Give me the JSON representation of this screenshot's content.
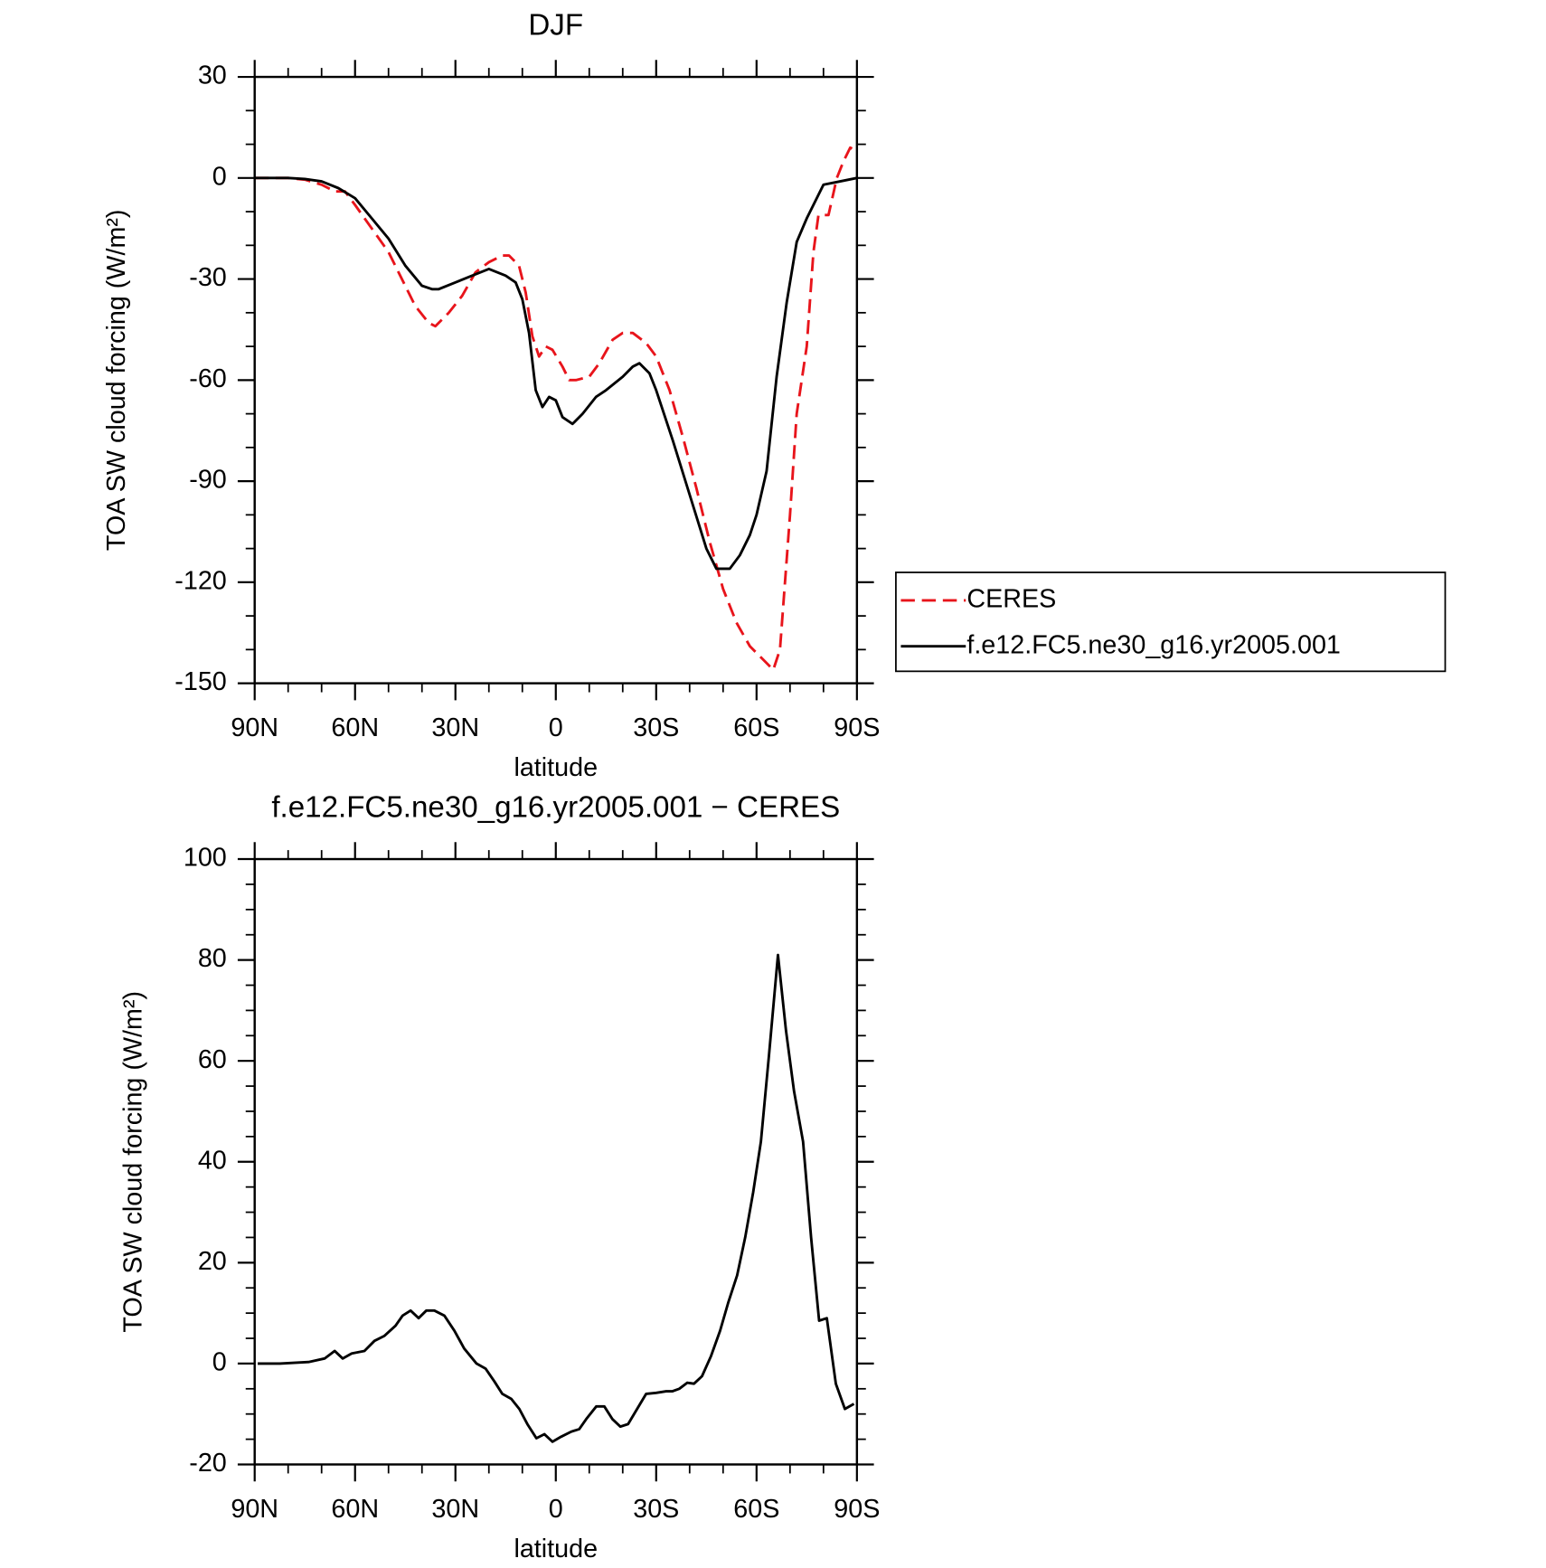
{
  "chart_data": [
    {
      "type": "line",
      "title": "DJF",
      "xlabel": "latitude",
      "ylabel": "TOA SW cloud forcing (W/m²)",
      "xlim": [
        90,
        -90
      ],
      "xticks": [
        {
          "value": 90,
          "label": "90N"
        },
        {
          "value": 60,
          "label": "60N"
        },
        {
          "value": 30,
          "label": "30N"
        },
        0,
        {
          "value": -30,
          "label": "30S"
        },
        {
          "value": -60,
          "label": "60S"
        },
        {
          "value": -90,
          "label": "90S"
        }
      ],
      "xminorticks": [
        80,
        70,
        50,
        40,
        20,
        10,
        -10,
        -20,
        -40,
        -50,
        -70,
        -80
      ],
      "ylim": [
        -150,
        30
      ],
      "yticks": [
        -150,
        -120,
        -90,
        -60,
        -30,
        0,
        30
      ],
      "yminorticks": [
        -140,
        -130,
        -110,
        -100,
        -80,
        -70,
        -50,
        -40,
        -20,
        -10,
        10,
        20
      ],
      "legend": "right",
      "series": [
        {
          "name": "CERES",
          "color": "#e8141b",
          "line_style": "dashed",
          "x": [
            90,
            80,
            75,
            70,
            66,
            63,
            60,
            55,
            50,
            45,
            42,
            38,
            36,
            32,
            28,
            24,
            20,
            16,
            14,
            11,
            9,
            7,
            5,
            3,
            1,
            -2,
            -4,
            -6,
            -10,
            -13,
            -17,
            -20,
            -23,
            -27,
            -30,
            -34,
            -38,
            -42,
            -46,
            -50,
            -54,
            -58,
            -62,
            -65,
            -67,
            -70,
            -72,
            -75,
            -77,
            -78.5,
            -81.5,
            -84,
            -86,
            -88,
            -90
          ],
          "values": [
            0,
            0,
            -0.5,
            -2,
            -4,
            -4,
            -8,
            -15,
            -22,
            -32,
            -38,
            -43,
            -44,
            -40,
            -35,
            -28,
            -25,
            -23,
            -23,
            -26,
            -34,
            -47,
            -53,
            -50,
            -51,
            -56,
            -60,
            -60,
            -59,
            -55,
            -48,
            -46,
            -46,
            -49,
            -53,
            -63,
            -77,
            -92,
            -108,
            -122,
            -132,
            -139,
            -143,
            -146,
            -140,
            -100,
            -70,
            -50,
            -22,
            -11,
            -11,
            0,
            5,
            9,
            8
          ]
        },
        {
          "name": "f.e12.FC5.ne30_g16.yr2005.001",
          "color": "#000000",
          "line_style": "solid",
          "x": [
            90,
            85,
            80,
            75,
            70,
            65,
            60,
            55,
            50,
            45,
            40,
            37,
            35,
            30,
            25,
            20,
            15,
            12,
            10,
            8,
            6,
            4,
            2,
            0,
            -2,
            -5,
            -8,
            -12,
            -15,
            -20,
            -23,
            -25,
            -28,
            -30,
            -35,
            -40,
            -45,
            -48,
            -52,
            -55,
            -58,
            -60,
            -63,
            -66,
            -69,
            -72,
            -75,
            -77,
            -80,
            -85,
            -90
          ],
          "values": [
            0,
            0,
            0,
            -0.3,
            -1,
            -3,
            -6,
            -12,
            -18,
            -26,
            -32,
            -33,
            -33,
            -31,
            -29,
            -27,
            -29,
            -31,
            -36,
            -46,
            -63,
            -68,
            -65,
            -66,
            -71,
            -73,
            -70,
            -65,
            -63,
            -59,
            -56,
            -55,
            -58,
            -63,
            -78,
            -94,
            -110,
            -116,
            -116,
            -112,
            -106,
            -100,
            -87,
            -59,
            -37,
            -19,
            -12,
            -8,
            -2,
            -1,
            0
          ]
        }
      ]
    },
    {
      "type": "line",
      "title": "f.e12.FC5.ne30_g16.yr2005.001 − CERES",
      "xlabel": "latitude",
      "ylabel": "TOA SW cloud forcing (W/m²)",
      "xlim": [
        90,
        -90
      ],
      "xticks": [
        {
          "value": 90,
          "label": "90N"
        },
        {
          "value": 60,
          "label": "60N"
        },
        {
          "value": 30,
          "label": "30N"
        },
        0,
        {
          "value": -30,
          "label": "30S"
        },
        {
          "value": -60,
          "label": "60S"
        },
        {
          "value": -90,
          "label": "90S"
        }
      ],
      "xminorticks": [
        80,
        70,
        50,
        40,
        20,
        10,
        -10,
        -20,
        -40,
        -50,
        -70,
        -80
      ],
      "ylim": [
        -20,
        100
      ],
      "yticks": [
        -20,
        0,
        20,
        40,
        60,
        80,
        100
      ],
      "yminorticks": [
        -15,
        -10,
        -5,
        5,
        10,
        15,
        25,
        30,
        35,
        45,
        50,
        55,
        65,
        70,
        75,
        85,
        90,
        95
      ],
      "series": [
        {
          "color": "#000000",
          "line_style": "solid",
          "x": [
            89.1,
            82.5,
            73.9,
            69.1,
            66.1,
            63.7,
            61,
            57.2,
            54.2,
            51.2,
            47.9,
            45.8,
            43.4,
            41,
            38.7,
            36.3,
            33.3,
            30.3,
            27.4,
            23.7,
            21,
            18.4,
            16,
            13.3,
            10.9,
            8.5,
            5.8,
            3.4,
            1,
            -1.6,
            -4.6,
            -7,
            -9.1,
            -12.1,
            -14.5,
            -16.9,
            -19.3,
            -21.6,
            -27,
            -30,
            -33,
            -34.8,
            -36.9,
            -39.3,
            -41.3,
            -43.7,
            -46.4,
            -49.1,
            -51.5,
            -54.2,
            -56.6,
            -59,
            -61.3,
            -63.7,
            -66.4,
            -68.8,
            -71.2,
            -73.9,
            -76.3,
            -78.7,
            -81,
            -83.7,
            -86.4,
            -89.1
          ],
          "values": [
            0,
            0,
            0.3,
            1,
            2.5,
            1,
            2,
            2.5,
            4.5,
            5.5,
            7.5,
            9.5,
            10.5,
            9,
            10.5,
            10.5,
            9.5,
            6.5,
            3,
            0,
            -1,
            -3.5,
            -6,
            -7,
            -9,
            -12,
            -14.8,
            -14,
            -15.5,
            -14.5,
            -13.5,
            -13,
            -11,
            -8.5,
            -8.5,
            -11,
            -12.5,
            -12,
            -6,
            -5.8,
            -5.5,
            -5.5,
            -5,
            -3.8,
            -4,
            -2.5,
            1.5,
            6.5,
            12,
            17.5,
            25,
            34,
            44,
            61,
            81,
            66,
            54,
            44,
            25,
            8.5,
            9,
            -4,
            -9,
            -8
          ]
        }
      ]
    }
  ]
}
